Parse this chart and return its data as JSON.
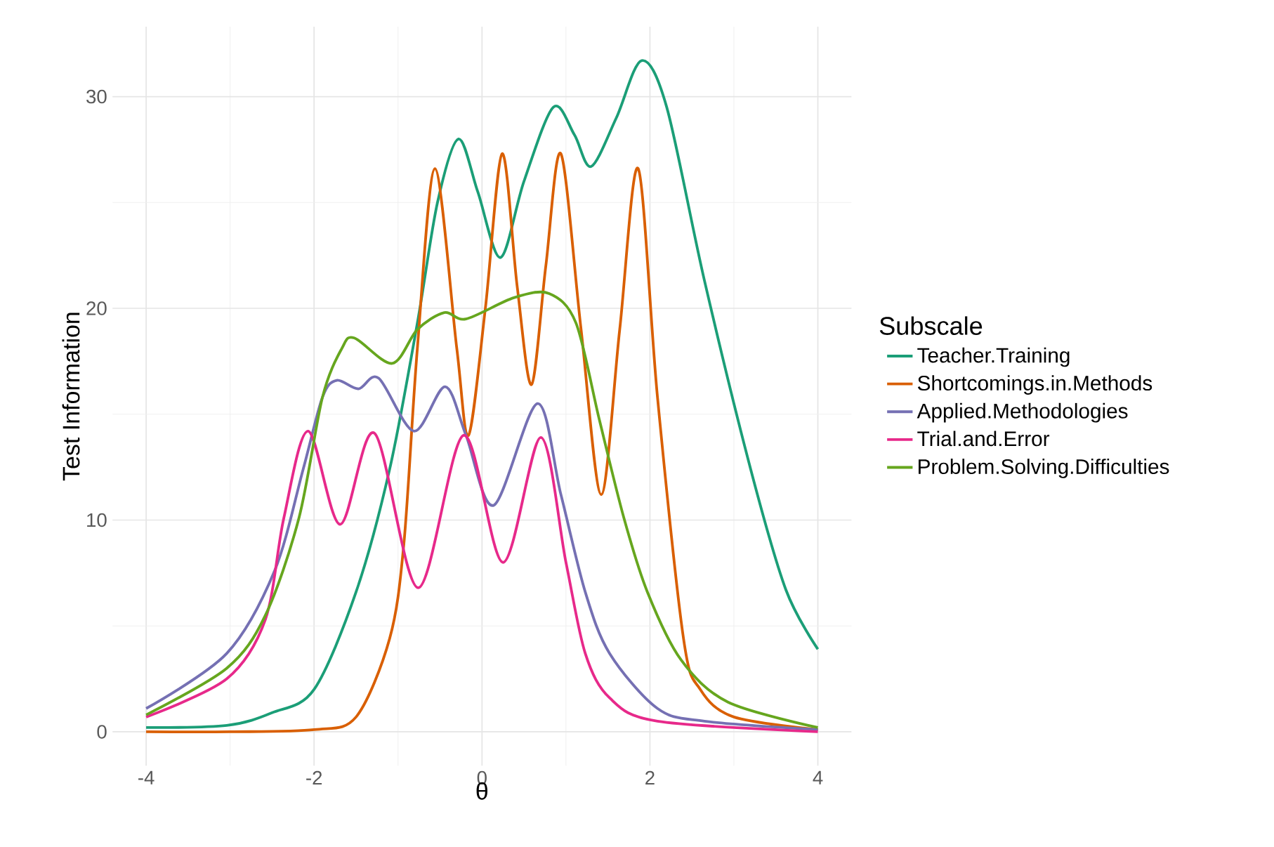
{
  "chart_data": {
    "type": "line",
    "xlabel": "θ",
    "ylabel": "Test Information",
    "legend_title": "Subscale",
    "legend": "right",
    "grid": true,
    "xlim": [
      -4.4,
      4.4
    ],
    "ylim": [
      -1.6,
      33.3
    ],
    "xticks": [
      -4,
      -2,
      0,
      2,
      4
    ],
    "yticks": [
      0,
      10,
      20,
      30
    ],
    "series": [
      {
        "name": "Teacher.Training",
        "color": "#1b9e77",
        "x": [
          -4,
          -3.04,
          -2.5,
          -2.0,
          -1.5,
          -1.1,
          -0.77,
          -0.53,
          -0.28,
          -0.05,
          0.22,
          0.5,
          0.85,
          1.1,
          1.3,
          1.6,
          1.9,
          2.2,
          2.65,
          3.2,
          3.62,
          4
        ],
        "values": [
          0.2,
          0.3,
          0.9,
          2.0,
          6.6,
          12.4,
          19.3,
          25,
          28.0,
          25.5,
          22.4,
          26,
          29.5,
          28.2,
          26.7,
          29,
          31.7,
          29.5,
          21.3,
          12.4,
          6.7,
          3.9
        ]
      },
      {
        "name": "Shortcomings.in.Methods",
        "color": "#d95f02",
        "x": [
          -4,
          -3,
          -2,
          -1.5,
          -1.1,
          -0.93,
          -0.77,
          -0.56,
          -0.3,
          -0.16,
          0.04,
          0.24,
          0.42,
          0.59,
          0.76,
          0.94,
          1.18,
          1.42,
          1.64,
          1.86,
          2.09,
          2.4,
          2.6,
          3.0,
          4
        ],
        "values": [
          0,
          0,
          0.1,
          0.7,
          4.4,
          8.9,
          18.1,
          26.6,
          18.1,
          14.0,
          20,
          27.3,
          21,
          16.4,
          22,
          27.3,
          19,
          11.2,
          19,
          26.6,
          15.8,
          4.4,
          2.0,
          0.7,
          0.1
        ]
      },
      {
        "name": "Applied.Methodologies",
        "color": "#7570b3",
        "x": [
          -4,
          -3.04,
          -2.47,
          -2.13,
          -1.9,
          -1.73,
          -1.47,
          -1.23,
          -0.81,
          -0.44,
          -0.19,
          0.14,
          0.66,
          0.94,
          1.23,
          1.52,
          2.09,
          2.65,
          4
        ],
        "values": [
          1.1,
          3.7,
          7.6,
          12.4,
          15.8,
          16.6,
          16.2,
          16.7,
          14.2,
          16.3,
          14.0,
          10.7,
          15.5,
          11.2,
          6.6,
          3.7,
          1.1,
          0.5,
          0.1
        ]
      },
      {
        "name": "Trial.and.Error",
        "color": "#e7298a",
        "x": [
          -4,
          -3.04,
          -2.58,
          -2.36,
          -2.07,
          -1.69,
          -1.28,
          -0.76,
          -0.22,
          0.25,
          0.7,
          1.0,
          1.23,
          1.52,
          2.09,
          4
        ],
        "values": [
          0.7,
          2.5,
          5.3,
          10.1,
          14.2,
          9.8,
          14.1,
          6.8,
          14.0,
          8.0,
          13.9,
          8.0,
          3.7,
          1.6,
          0.5,
          0.0
        ]
      },
      {
        "name": "Problem.Solving.Difficulties",
        "color": "#66a61e",
        "x": [
          -4,
          -3.04,
          -2.58,
          -2.18,
          -1.9,
          -1.67,
          -1.52,
          -1.07,
          -0.77,
          -0.45,
          -0.19,
          0.38,
          0.8,
          1.12,
          1.4,
          1.69,
          1.97,
          2.37,
          2.93,
          4
        ],
        "values": [
          0.8,
          3.0,
          5.5,
          10.1,
          15.8,
          18.1,
          18.6,
          17.4,
          19.0,
          19.8,
          19.5,
          20.5,
          20.7,
          19.3,
          14.7,
          10.1,
          6.6,
          3.4,
          1.4,
          0.2
        ]
      }
    ]
  }
}
